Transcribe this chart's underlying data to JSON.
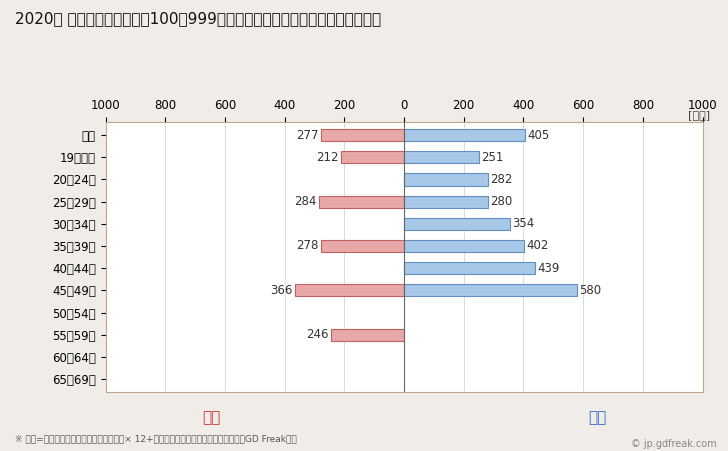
{
  "title": "2020年 民間企業（従業者数100〜999人）フルタイム労働者の男女別平均年収",
  "ylabel_unit": "[万円]",
  "categories": [
    "全体",
    "19歳以下",
    "20〜24歳",
    "25〜29歳",
    "30〜34歳",
    "35〜39歳",
    "40〜44歳",
    "45〜49歳",
    "50〜54歳",
    "55〜59歳",
    "60〜64歳",
    "65〜69歳"
  ],
  "female_values": [
    277,
    212,
    0,
    284,
    0,
    278,
    0,
    366,
    0,
    246,
    0,
    0
  ],
  "male_values": [
    405,
    251,
    282,
    280,
    354,
    402,
    439,
    580,
    0,
    0,
    0,
    0
  ],
  "female_color": "#e8a8a8",
  "male_color": "#a8c8e8",
  "female_border_color": "#c06060",
  "male_border_color": "#6090c0",
  "female_label": "女性",
  "male_label": "男性",
  "female_label_color": "#cc3333",
  "male_label_color": "#3366cc",
  "xlim": [
    -1000,
    1000
  ],
  "xticks": [
    -1000,
    -800,
    -600,
    -400,
    -200,
    0,
    200,
    400,
    600,
    800,
    1000
  ],
  "xtick_labels": [
    "1000",
    "800",
    "600",
    "400",
    "200",
    "0",
    "200",
    "400",
    "600",
    "800",
    "1000"
  ],
  "background_color": "#f0ede8",
  "plot_bg_color": "#ffffff",
  "grid_color": "#cccccc",
  "title_fontsize": 11,
  "tick_fontsize": 8.5,
  "label_fontsize": 8.5,
  "footnote": "※ 年収=「きまって支給する現金給与額」× 12+「年間賞与その他特別給与額」としてGD Freak推計",
  "watermark": "© jp.gdfreak.com",
  "bar_height": 0.55
}
